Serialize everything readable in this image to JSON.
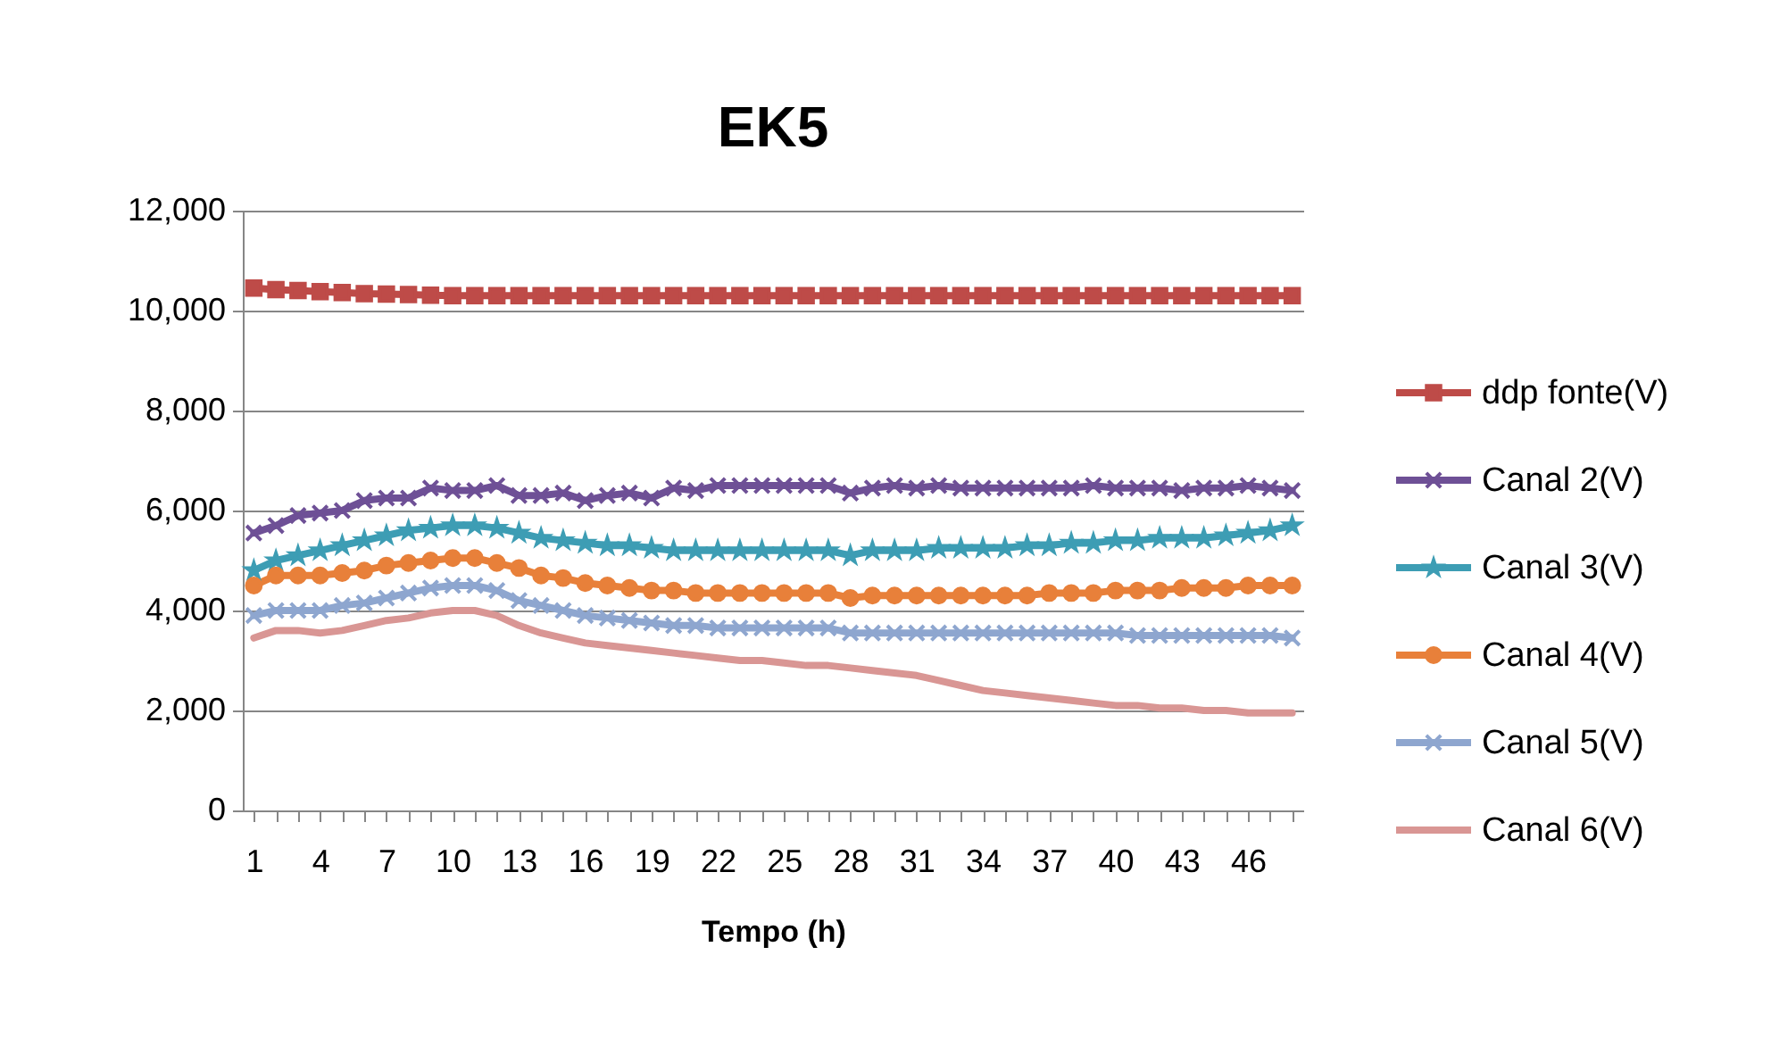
{
  "chart_data": {
    "type": "line",
    "title": "EK5",
    "xlabel": "Tempo (h)",
    "categories": [
      "1",
      null,
      null,
      "4",
      null,
      null,
      "7",
      null,
      null,
      "10",
      null,
      null,
      "13",
      null,
      null,
      "16",
      null,
      null,
      "19",
      null,
      null,
      "22",
      null,
      null,
      "25",
      null,
      null,
      "28",
      null,
      null,
      "31",
      null,
      null,
      "34",
      null,
      null,
      "37",
      null,
      null,
      "40",
      null,
      null,
      "43",
      null,
      null,
      "46",
      null,
      null
    ],
    "ylim": [
      0,
      12000
    ],
    "yticks": [
      {
        "value": 0,
        "label": "0"
      },
      {
        "value": 2000,
        "label": "2,000"
      },
      {
        "value": 4000,
        "label": "4,000"
      },
      {
        "value": 6000,
        "label": "6,000"
      },
      {
        "value": 8000,
        "label": "8,000"
      },
      {
        "value": 10000,
        "label": "10,000"
      },
      {
        "value": 12000,
        "label": "12,000"
      }
    ],
    "grid": "y",
    "legend": "right",
    "series": [
      {
        "name": "ddp fonte(V)",
        "color": "#be4b48",
        "marker": "square",
        "values": [
          10450,
          10420,
          10400,
          10380,
          10360,
          10340,
          10330,
          10320,
          10310,
          10300,
          10300,
          10300,
          10300,
          10300,
          10300,
          10300,
          10300,
          10300,
          10300,
          10300,
          10300,
          10300,
          10300,
          10300,
          10300,
          10300,
          10300,
          10300,
          10300,
          10300,
          10300,
          10300,
          10300,
          10300,
          10300,
          10300,
          10300,
          10300,
          10300,
          10300,
          10300,
          10300,
          10300,
          10300,
          10300,
          10300,
          10300,
          10300
        ]
      },
      {
        "name": "Canal 2(V)",
        "color": "#6e5096",
        "marker": "cross",
        "values": [
          5550,
          5700,
          5900,
          5950,
          6000,
          6200,
          6250,
          6250,
          6450,
          6400,
          6400,
          6500,
          6300,
          6300,
          6350,
          6200,
          6300,
          6350,
          6250,
          6450,
          6400,
          6500,
          6500,
          6500,
          6500,
          6500,
          6500,
          6350,
          6450,
          6500,
          6450,
          6500,
          6450,
          6450,
          6450,
          6450,
          6450,
          6450,
          6500,
          6450,
          6450,
          6450,
          6400,
          6450,
          6450,
          6500,
          6450,
          6400
        ]
      },
      {
        "name": "Canal 3(V)",
        "color": "#3d9db4",
        "marker": "star",
        "values": [
          4800,
          5000,
          5100,
          5200,
          5300,
          5400,
          5500,
          5600,
          5650,
          5700,
          5700,
          5650,
          5550,
          5450,
          5400,
          5350,
          5300,
          5300,
          5250,
          5200,
          5200,
          5200,
          5200,
          5200,
          5200,
          5200,
          5200,
          5100,
          5200,
          5200,
          5200,
          5250,
          5250,
          5250,
          5250,
          5300,
          5300,
          5350,
          5350,
          5400,
          5400,
          5450,
          5450,
          5450,
          5500,
          5550,
          5600,
          5700
        ]
      },
      {
        "name": "Canal 4(V)",
        "color": "#e8803a",
        "marker": "circle",
        "values": [
          4500,
          4700,
          4700,
          4700,
          4750,
          4800,
          4900,
          4950,
          5000,
          5050,
          5050,
          4950,
          4850,
          4700,
          4650,
          4550,
          4500,
          4450,
          4400,
          4400,
          4350,
          4350,
          4350,
          4350,
          4350,
          4350,
          4350,
          4250,
          4300,
          4300,
          4300,
          4300,
          4300,
          4300,
          4300,
          4300,
          4350,
          4350,
          4350,
          4400,
          4400,
          4400,
          4450,
          4450,
          4450,
          4500,
          4500,
          4500
        ]
      },
      {
        "name": "Canal 5(V)",
        "color": "#8ea6cf",
        "marker": "cross",
        "values": [
          3900,
          4000,
          4000,
          4000,
          4100,
          4150,
          4250,
          4350,
          4450,
          4500,
          4500,
          4400,
          4200,
          4100,
          4000,
          3900,
          3850,
          3800,
          3750,
          3700,
          3700,
          3650,
          3650,
          3650,
          3650,
          3650,
          3650,
          3550,
          3550,
          3550,
          3550,
          3550,
          3550,
          3550,
          3550,
          3550,
          3550,
          3550,
          3550,
          3550,
          3500,
          3500,
          3500,
          3500,
          3500,
          3500,
          3500,
          3450
        ]
      },
      {
        "name": "Canal 6(V)",
        "color": "#d99694",
        "marker": "none",
        "values": [
          3450,
          3600,
          3600,
          3550,
          3600,
          3700,
          3800,
          3850,
          3950,
          4000,
          4000,
          3900,
          3700,
          3550,
          3450,
          3350,
          3300,
          3250,
          3200,
          3150,
          3100,
          3050,
          3000,
          3000,
          2950,
          2900,
          2900,
          2850,
          2800,
          2750,
          2700,
          2600,
          2500,
          2400,
          2350,
          2300,
          2250,
          2200,
          2150,
          2100,
          2100,
          2050,
          2050,
          2000,
          2000,
          1950,
          1950,
          1950
        ]
      }
    ]
  }
}
